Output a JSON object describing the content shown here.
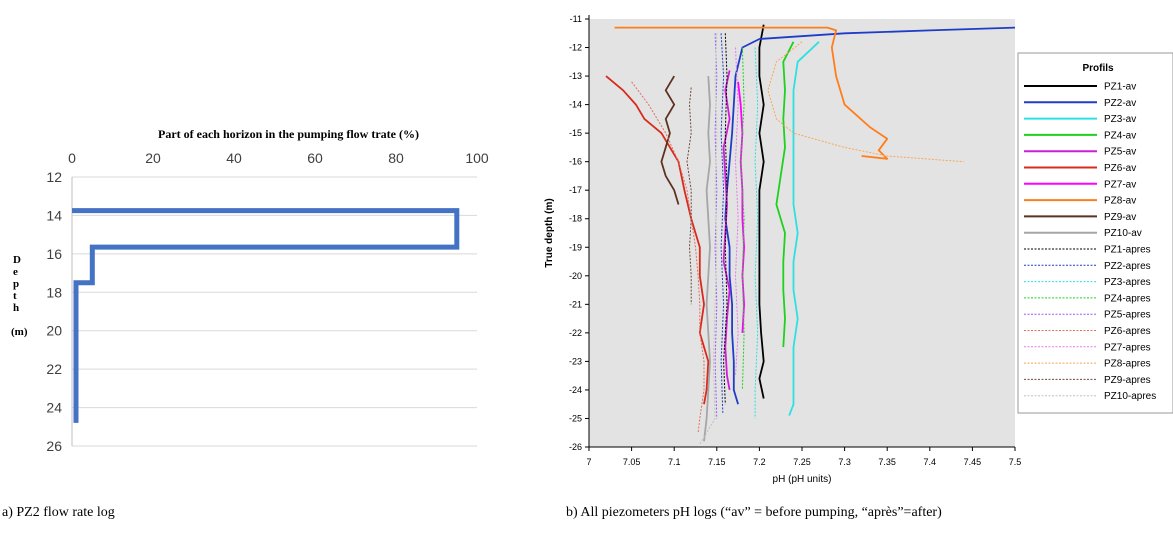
{
  "captions": {
    "a": "a) PZ2 flow rate log",
    "b": "b) All piezometers pH logs (“av” = before pumping, “après”=after)"
  },
  "chart_data": [
    {
      "type": "line",
      "title": "",
      "xlabel": "Part of each horizon in the pumping flow trate (%)",
      "ylabel_letters": [
        "D",
        "e",
        "p",
        "t",
        "h"
      ],
      "ylabel_unit": "(m)",
      "xlim": [
        0,
        100
      ],
      "ylim": [
        12,
        26
      ],
      "y_inverted": true,
      "x_ticks": [
        0,
        20,
        40,
        60,
        80,
        100
      ],
      "y_ticks": [
        12,
        14,
        16,
        18,
        20,
        22,
        24,
        26
      ],
      "grid": "horizontal",
      "series": [
        {
          "color": "#4472c4",
          "points": [
            [
              0,
              13.75
            ],
            [
              95,
              13.75
            ],
            [
              95,
              15.65
            ],
            [
              5,
              15.65
            ],
            [
              5,
              17.5
            ],
            [
              1,
              17.5
            ],
            [
              1,
              24.8
            ]
          ]
        }
      ]
    },
    {
      "type": "line",
      "title": "",
      "xlabel": "pH (pH units)",
      "ylabel": "True depth (m)",
      "xlim": [
        7,
        7.5
      ],
      "ylim": [
        -26,
        -11
      ],
      "x_ticks": [
        "7",
        "7.05",
        "7.1",
        "7.15",
        "7.2",
        "7.25",
        "7.3",
        "7.35",
        "7.4",
        "7.45",
        "7.5"
      ],
      "y_ticks": [
        "-11",
        "-12",
        "-13",
        "-14",
        "-15",
        "-16",
        "-17",
        "-18",
        "-19",
        "-20",
        "-21",
        "-22",
        "-23",
        "-24",
        "-25",
        "-26"
      ],
      "legend": {
        "title": "Profils",
        "placement": "right"
      },
      "series": [
        {
          "name": "PZ1-av",
          "color": "#000000",
          "dash": false,
          "pts": [
            [
              -11.2,
              7.205
            ],
            [
              -12,
              7.2
            ],
            [
              -13,
              7.2
            ],
            [
              -14,
              7.205
            ],
            [
              -15,
              7.2
            ],
            [
              -16,
              7.205
            ],
            [
              -17,
              7.2
            ],
            [
              -18,
              7.2
            ],
            [
              -19,
              7.2
            ],
            [
              -20,
              7.2
            ],
            [
              -21,
              7.2
            ],
            [
              -22,
              7.202
            ],
            [
              -23,
              7.205
            ],
            [
              -23.6,
              7.2
            ],
            [
              -24.3,
              7.205
            ]
          ]
        },
        {
          "name": "PZ2-av",
          "color": "#1f3cc9",
          "dash": false,
          "pts": [
            [
              -11.3,
              7.5
            ],
            [
              -11.4,
              7.4
            ],
            [
              -11.5,
              7.3
            ],
            [
              -11.7,
              7.2
            ],
            [
              -12,
              7.18
            ],
            [
              -13,
              7.172
            ],
            [
              -14,
              7.17
            ],
            [
              -15,
              7.168
            ],
            [
              -16,
              7.165
            ],
            [
              -17,
              7.162
            ],
            [
              -18,
              7.16
            ],
            [
              -19,
              7.165
            ],
            [
              -20,
              7.165
            ],
            [
              -21,
              7.168
            ],
            [
              -22,
              7.168
            ],
            [
              -23,
              7.17
            ],
            [
              -24,
              7.17
            ],
            [
              -24.5,
              7.175
            ]
          ]
        },
        {
          "name": "PZ3-av",
          "color": "#2ee0e0",
          "dash": false,
          "pts": [
            [
              -11.8,
              7.27
            ],
            [
              -12.5,
              7.245
            ],
            [
              -13.5,
              7.24
            ],
            [
              -14.5,
              7.24
            ],
            [
              -15.5,
              7.24
            ],
            [
              -16.5,
              7.24
            ],
            [
              -17.5,
              7.24
            ],
            [
              -18.5,
              7.245
            ],
            [
              -19.5,
              7.24
            ],
            [
              -20.5,
              7.24
            ],
            [
              -21.5,
              7.245
            ],
            [
              -22.5,
              7.24
            ],
            [
              -23.5,
              7.24
            ],
            [
              -24.5,
              7.24
            ],
            [
              -24.9,
              7.235
            ]
          ]
        },
        {
          "name": "PZ4-av",
          "color": "#1ed11e",
          "dash": false,
          "pts": [
            [
              -11.8,
              7.24
            ],
            [
              -12.5,
              7.228
            ],
            [
              -13.5,
              7.23
            ],
            [
              -14.5,
              7.228
            ],
            [
              -15.5,
              7.23
            ],
            [
              -16.5,
              7.225
            ],
            [
              -17.5,
              7.22
            ],
            [
              -18.5,
              7.23
            ],
            [
              -19.5,
              7.228
            ],
            [
              -20.5,
              7.228
            ],
            [
              -21.5,
              7.23
            ],
            [
              -22.5,
              7.228
            ]
          ]
        },
        {
          "name": "PZ5-av",
          "color": "#cc1fd6",
          "dash": false,
          "pts": [
            [
              -12.8,
              7.165
            ],
            [
              -13.5,
              7.16
            ],
            [
              -14.5,
              7.165
            ],
            [
              -15.5,
              7.158
            ],
            [
              -16.5,
              7.16
            ],
            [
              -17.5,
              7.162
            ],
            [
              -18.5,
              7.16
            ],
            [
              -19.5,
              7.158
            ],
            [
              -20.5,
              7.165
            ],
            [
              -21.5,
              7.162
            ],
            [
              -22.5,
              7.16
            ],
            [
              -23.5,
              7.162
            ],
            [
              -24,
              7.165
            ]
          ]
        },
        {
          "name": "PZ6-av",
          "color": "#d82a1c",
          "dash": false,
          "pts": [
            [
              -13,
              7.02
            ],
            [
              -13.5,
              7.04
            ],
            [
              -14,
              7.055
            ],
            [
              -14.5,
              7.065
            ],
            [
              -15,
              7.085
            ],
            [
              -16,
              7.105
            ],
            [
              -17,
              7.112
            ],
            [
              -18,
              7.12
            ],
            [
              -19,
              7.13
            ],
            [
              -20,
              7.13
            ],
            [
              -21,
              7.135
            ],
            [
              -22,
              7.13
            ],
            [
              -23,
              7.14
            ],
            [
              -24,
              7.138
            ],
            [
              -24.5,
              7.135
            ]
          ]
        },
        {
          "name": "PZ7-av",
          "color": "#ff00ff",
          "dash": false,
          "pts": [
            [
              -13.2,
              7.175
            ],
            [
              -14,
              7.178
            ],
            [
              -15,
              7.18
            ],
            [
              -16,
              7.178
            ],
            [
              -17,
              7.18
            ],
            [
              -18,
              7.18
            ],
            [
              -19,
              7.182
            ],
            [
              -20,
              7.18
            ],
            [
              -21,
              7.182
            ],
            [
              -22,
              7.18
            ]
          ]
        },
        {
          "name": "PZ8-av",
          "color": "#ff7e1c",
          "dash": false,
          "pts": [
            [
              -11.3,
              7.03
            ],
            [
              -11.3,
              7.28
            ],
            [
              -11.4,
              7.29
            ],
            [
              -12,
              7.285
            ],
            [
              -13,
              7.29
            ],
            [
              -14,
              7.3
            ],
            [
              -14.8,
              7.33
            ],
            [
              -15.2,
              7.35
            ],
            [
              -15.6,
              7.34
            ],
            [
              -15.9,
              7.35
            ],
            [
              -15.8,
              7.32
            ]
          ]
        },
        {
          "name": "PZ9-av",
          "color": "#5e3220",
          "dash": false,
          "pts": [
            [
              -13,
              7.1
            ],
            [
              -13.5,
              7.09
            ],
            [
              -14,
              7.1
            ],
            [
              -14.5,
              7.09
            ],
            [
              -15,
              7.095
            ],
            [
              -15.5,
              7.09
            ],
            [
              -16,
              7.085
            ],
            [
              -16.5,
              7.09
            ],
            [
              -17,
              7.1
            ],
            [
              -17.5,
              7.105
            ]
          ]
        },
        {
          "name": "PZ10-av",
          "color": "#a6a6a6",
          "dash": false,
          "pts": [
            [
              -13,
              7.14
            ],
            [
              -14,
              7.142
            ],
            [
              -15,
              7.14
            ],
            [
              -16,
              7.142
            ],
            [
              -17,
              7.138
            ],
            [
              -18,
              7.14
            ],
            [
              -19,
              7.142
            ],
            [
              -20,
              7.14
            ],
            [
              -21,
              7.138
            ],
            [
              -22,
              7.14
            ],
            [
              -23,
              7.142
            ],
            [
              -24,
              7.14
            ],
            [
              -25,
              7.138
            ],
            [
              -25.8,
              7.135
            ]
          ]
        },
        {
          "name": "PZ1-apres",
          "color": "#000000",
          "dash": true,
          "pts": [
            [
              -11.5,
              7.16
            ],
            [
              -13,
              7.162
            ],
            [
              -15,
              7.16
            ],
            [
              -17,
              7.162
            ],
            [
              -19,
              7.16
            ],
            [
              -21,
              7.162
            ],
            [
              -23,
              7.158
            ],
            [
              -24.5,
              7.16
            ]
          ]
        },
        {
          "name": "PZ2-apres",
          "color": "#1f3cc9",
          "dash": true,
          "pts": [
            [
              -11.5,
              7.155
            ],
            [
              -13,
              7.158
            ],
            [
              -15,
              7.155
            ],
            [
              -17,
              7.158
            ],
            [
              -19,
              7.155
            ],
            [
              -21,
              7.158
            ],
            [
              -23,
              7.155
            ],
            [
              -24.8,
              7.157
            ]
          ]
        },
        {
          "name": "PZ3-apres",
          "color": "#2ee0e0",
          "dash": true,
          "pts": [
            [
              -12,
              7.195
            ],
            [
              -14,
              7.198
            ],
            [
              -16,
              7.195
            ],
            [
              -18,
              7.198
            ],
            [
              -20,
              7.195
            ],
            [
              -22,
              7.198
            ],
            [
              -24,
              7.195
            ],
            [
              -25,
              7.195
            ]
          ]
        },
        {
          "name": "PZ4-apres",
          "color": "#1ed11e",
          "dash": true,
          "pts": [
            [
              -12,
              7.18
            ],
            [
              -14,
              7.182
            ],
            [
              -16,
              7.178
            ],
            [
              -18,
              7.182
            ],
            [
              -20,
              7.18
            ],
            [
              -22,
              7.182
            ],
            [
              -24,
              7.18
            ]
          ]
        },
        {
          "name": "PZ5-apres",
          "color": "#9b5cf5",
          "dash": true,
          "pts": [
            [
              -11.5,
              7.148
            ],
            [
              -13,
              7.15
            ],
            [
              -15,
              7.148
            ],
            [
              -17,
              7.15
            ],
            [
              -19,
              7.148
            ],
            [
              -21,
              7.15
            ],
            [
              -23,
              7.148
            ],
            [
              -25,
              7.15
            ]
          ]
        },
        {
          "name": "PZ6-apres",
          "color": "#e07060",
          "dash": true,
          "pts": [
            [
              -13.2,
              7.05
            ],
            [
              -14,
              7.07
            ],
            [
              -15,
              7.09
            ],
            [
              -16,
              7.105
            ],
            [
              -17,
              7.115
            ],
            [
              -18,
              7.12
            ],
            [
              -19,
              7.125
            ],
            [
              -20,
              7.128
            ],
            [
              -21,
              7.13
            ],
            [
              -22,
              7.13
            ],
            [
              -23,
              7.135
            ],
            [
              -24,
              7.135
            ],
            [
              -25,
              7.13
            ],
            [
              -25.5,
              7.128
            ]
          ]
        },
        {
          "name": "PZ7-apres",
          "color": "#e879e8",
          "dash": true,
          "pts": [
            [
              -12,
              7.172
            ],
            [
              -14,
              7.175
            ],
            [
              -16,
              7.172
            ],
            [
              -18,
              7.175
            ],
            [
              -20,
              7.172
            ],
            [
              -22,
              7.175
            ],
            [
              -23.5,
              7.172
            ]
          ]
        },
        {
          "name": "PZ8-apres",
          "color": "#f5a85a",
          "dash": true,
          "pts": [
            [
              -11.8,
              7.25
            ],
            [
              -12.5,
              7.22
            ],
            [
              -13.5,
              7.21
            ],
            [
              -14.5,
              7.22
            ],
            [
              -15,
              7.24
            ],
            [
              -15.5,
              7.3
            ],
            [
              -15.8,
              7.35
            ],
            [
              -16,
              7.44
            ]
          ]
        },
        {
          "name": "PZ9-apres",
          "color": "#6e4a3a",
          "dash": true,
          "pts": [
            [
              -13.4,
              7.12
            ],
            [
              -14,
              7.118
            ],
            [
              -15,
              7.12
            ],
            [
              -16,
              7.115
            ],
            [
              -17,
              7.12
            ],
            [
              -18,
              7.12
            ],
            [
              -19,
              7.118
            ],
            [
              -20,
              7.12
            ],
            [
              -21,
              7.12
            ]
          ]
        },
        {
          "name": "PZ10-apres",
          "color": "#c0c0c0",
          "dash": true,
          "pts": [
            [
              -11.5,
              7.15
            ],
            [
              -13,
              7.148
            ],
            [
              -15,
              7.15
            ],
            [
              -17,
              7.148
            ],
            [
              -19,
              7.15
            ],
            [
              -21,
              7.148
            ],
            [
              -23,
              7.146
            ],
            [
              -25,
              7.148
            ],
            [
              -25.9,
              7.13
            ]
          ]
        }
      ]
    }
  ]
}
